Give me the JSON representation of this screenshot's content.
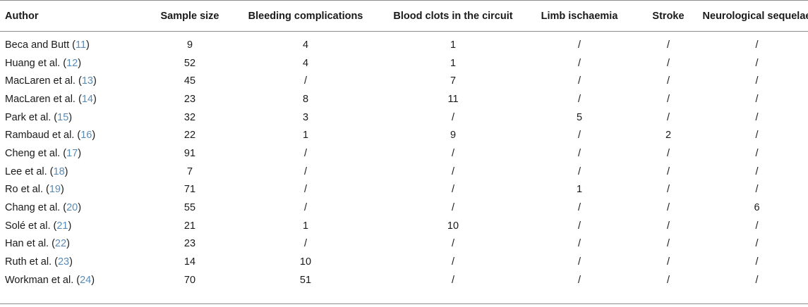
{
  "headers": [
    "Author",
    "Sample size",
    "Bleeding complications",
    "Blood clots in the circuit",
    "Limb ischaemia",
    "Stroke",
    "Neurological sequelae"
  ],
  "rows": [
    {
      "author": "Beca and Butt (",
      "ref": "11",
      "close": ")",
      "cells": [
        "9",
        "4",
        "1",
        "/",
        "/",
        "/"
      ]
    },
    {
      "author": "Huang et al. (",
      "ref": "12",
      "close": ")",
      "cells": [
        "52",
        "4",
        "1",
        "/",
        "/",
        "/"
      ]
    },
    {
      "author": "MacLaren et al. (",
      "ref": "13",
      "close": ")",
      "cells": [
        "45",
        "/",
        "7",
        "/",
        "/",
        "/"
      ]
    },
    {
      "author": "MacLaren et al. (",
      "ref": "14",
      "close": ")",
      "cells": [
        "23",
        "8",
        "11",
        "/",
        "/",
        "/"
      ]
    },
    {
      "author": "Park et al. (",
      "ref": "15",
      "close": ")",
      "cells": [
        "32",
        "3",
        "/",
        "5",
        "/",
        "/"
      ]
    },
    {
      "author": "Rambaud et al. (",
      "ref": "16",
      "close": ")",
      "cells": [
        "22",
        "1",
        "9",
        "/",
        "2",
        "/"
      ]
    },
    {
      "author": "Cheng et al. (",
      "ref": "17",
      "close": ")",
      "cells": [
        "91",
        "/",
        "/",
        "/",
        "/",
        "/"
      ]
    },
    {
      "author": "Lee et al. (",
      "ref": "18",
      "close": ")",
      "cells": [
        "7",
        "/",
        "/",
        "/",
        "/",
        "/"
      ]
    },
    {
      "author": "Ro et al. (",
      "ref": "19",
      "close": ")",
      "cells": [
        "71",
        "/",
        "/",
        "1",
        "/",
        "/"
      ]
    },
    {
      "author": "Chang et al. (",
      "ref": "20",
      "close": ")",
      "cells": [
        "55",
        "/",
        "/",
        "/",
        "/",
        "6"
      ]
    },
    {
      "author": "Solé et al. (",
      "ref": "21",
      "close": ")",
      "cells": [
        "21",
        "1",
        "10",
        "/",
        "/",
        "/"
      ]
    },
    {
      "author": "Han et al. (",
      "ref": "22",
      "close": ")",
      "cells": [
        "23",
        "/",
        "/",
        "/",
        "/",
        "/"
      ]
    },
    {
      "author": "Ruth et al. (",
      "ref": "23",
      "close": ")",
      "cells": [
        "14",
        "10",
        "/",
        "/",
        "/",
        "/"
      ]
    },
    {
      "author": "Workman et al. (",
      "ref": "24",
      "close": ")",
      "cells": [
        "70",
        "51",
        "/",
        "/",
        "/",
        "/"
      ]
    }
  ],
  "colors": {
    "reference_link": "#5a8bb5",
    "rule": "#8c8c8c",
    "text": "#1a1a1a"
  }
}
